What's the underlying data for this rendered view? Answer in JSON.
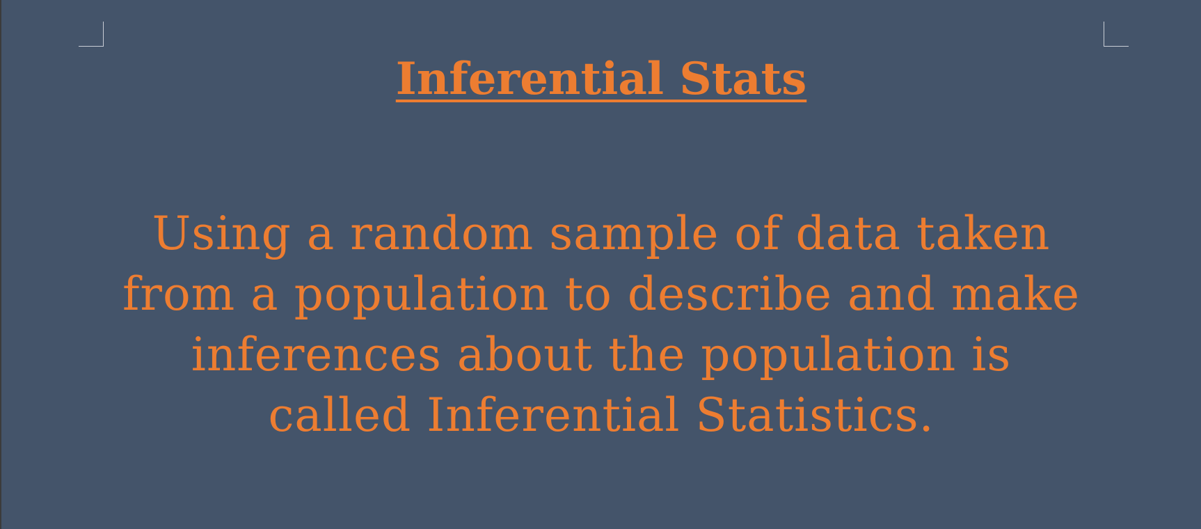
{
  "document": {
    "title": "Inferential Stats",
    "body": "Using a random sample of data taken from a population to describe and make inferences about the population is called Inferential Statistics."
  },
  "colors": {
    "page_background": "#44546a",
    "text": "#ed7d31"
  }
}
